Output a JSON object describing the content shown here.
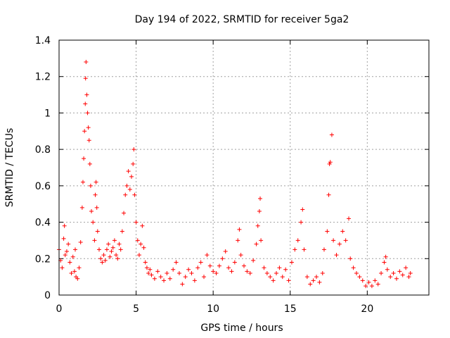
{
  "chart_data": {
    "type": "scatter",
    "title": "Day 194 of 2022, SRMTID for receiver 5ga2",
    "xlabel": "GPS time / hours",
    "ylabel": "SRMTID / TECUs",
    "xlim": [
      0,
      24
    ],
    "ylim": [
      0,
      1.4
    ],
    "xticks": [
      0,
      5,
      10,
      15,
      20
    ],
    "xtick_labels": [
      "0",
      "5",
      "10",
      "15",
      "20"
    ],
    "yticks": [
      0,
      0.2,
      0.4,
      0.6,
      0.8,
      1.0,
      1.2,
      1.4
    ],
    "ytick_labels": [
      "0",
      "0.2",
      "0.4",
      "0.6",
      "0.8",
      "1",
      "1.2",
      "1.4"
    ],
    "grid": true,
    "marker": "+",
    "color": "#ff0000",
    "series": [
      {
        "name": "SRMTID",
        "points": [
          [
            0.0,
            0.25
          ],
          [
            0.1,
            0.19
          ],
          [
            0.2,
            0.15
          ],
          [
            0.3,
            0.31
          ],
          [
            0.35,
            0.38
          ],
          [
            0.4,
            0.22
          ],
          [
            0.5,
            0.24
          ],
          [
            0.6,
            0.28
          ],
          [
            0.7,
            0.18
          ],
          [
            0.8,
            0.12
          ],
          [
            0.9,
            0.21
          ],
          [
            1.0,
            0.13
          ],
          [
            1.05,
            0.25
          ],
          [
            1.1,
            0.1
          ],
          [
            1.2,
            0.09
          ],
          [
            1.3,
            0.15
          ],
          [
            1.4,
            0.29
          ],
          [
            1.5,
            0.48
          ],
          [
            1.55,
            0.62
          ],
          [
            1.6,
            0.75
          ],
          [
            1.65,
            0.9
          ],
          [
            1.7,
            1.05
          ],
          [
            1.72,
            1.19
          ],
          [
            1.75,
            1.28
          ],
          [
            1.8,
            1.1
          ],
          [
            1.85,
            1.0
          ],
          [
            1.9,
            0.92
          ],
          [
            1.95,
            0.85
          ],
          [
            2.0,
            0.72
          ],
          [
            2.05,
            0.6
          ],
          [
            2.1,
            0.46
          ],
          [
            2.2,
            0.4
          ],
          [
            2.3,
            0.3
          ],
          [
            2.35,
            0.55
          ],
          [
            2.4,
            0.62
          ],
          [
            2.45,
            0.48
          ],
          [
            2.5,
            0.35
          ],
          [
            2.6,
            0.25
          ],
          [
            2.7,
            0.2
          ],
          [
            2.8,
            0.18
          ],
          [
            2.9,
            0.22
          ],
          [
            3.0,
            0.19
          ],
          [
            3.1,
            0.25
          ],
          [
            3.2,
            0.28
          ],
          [
            3.3,
            0.21
          ],
          [
            3.4,
            0.24
          ],
          [
            3.5,
            0.26
          ],
          [
            3.6,
            0.3
          ],
          [
            3.7,
            0.22
          ],
          [
            3.8,
            0.2
          ],
          [
            3.9,
            0.28
          ],
          [
            4.0,
            0.25
          ],
          [
            4.1,
            0.35
          ],
          [
            4.2,
            0.45
          ],
          [
            4.3,
            0.55
          ],
          [
            4.4,
            0.6
          ],
          [
            4.5,
            0.68
          ],
          [
            4.6,
            0.58
          ],
          [
            4.7,
            0.65
          ],
          [
            4.8,
            0.72
          ],
          [
            4.85,
            0.8
          ],
          [
            4.9,
            0.55
          ],
          [
            5.0,
            0.4
          ],
          [
            5.1,
            0.3
          ],
          [
            5.2,
            0.22
          ],
          [
            5.3,
            0.28
          ],
          [
            5.4,
            0.38
          ],
          [
            5.5,
            0.26
          ],
          [
            5.6,
            0.18
          ],
          [
            5.7,
            0.15
          ],
          [
            5.8,
            0.12
          ],
          [
            5.9,
            0.14
          ],
          [
            6.0,
            0.11
          ],
          [
            6.2,
            0.09
          ],
          [
            6.4,
            0.13
          ],
          [
            6.6,
            0.1
          ],
          [
            6.8,
            0.08
          ],
          [
            7.0,
            0.12
          ],
          [
            7.2,
            0.09
          ],
          [
            7.4,
            0.14
          ],
          [
            7.6,
            0.18
          ],
          [
            7.8,
            0.12
          ],
          [
            8.0,
            0.06
          ],
          [
            8.2,
            0.1
          ],
          [
            8.4,
            0.14
          ],
          [
            8.6,
            0.12
          ],
          [
            8.8,
            0.08
          ],
          [
            9.0,
            0.15
          ],
          [
            9.2,
            0.18
          ],
          [
            9.4,
            0.1
          ],
          [
            9.6,
            0.22
          ],
          [
            9.8,
            0.16
          ],
          [
            10.0,
            0.13
          ],
          [
            10.2,
            0.12
          ],
          [
            10.4,
            0.16
          ],
          [
            10.6,
            0.2
          ],
          [
            10.8,
            0.24
          ],
          [
            11.0,
            0.15
          ],
          [
            11.2,
            0.13
          ],
          [
            11.4,
            0.18
          ],
          [
            11.6,
            0.3
          ],
          [
            11.7,
            0.36
          ],
          [
            11.8,
            0.22
          ],
          [
            12.0,
            0.16
          ],
          [
            12.2,
            0.13
          ],
          [
            12.4,
            0.12
          ],
          [
            12.6,
            0.19
          ],
          [
            12.8,
            0.28
          ],
          [
            12.9,
            0.38
          ],
          [
            13.0,
            0.46
          ],
          [
            13.05,
            0.53
          ],
          [
            13.1,
            0.3
          ],
          [
            13.3,
            0.15
          ],
          [
            13.5,
            0.12
          ],
          [
            13.7,
            0.1
          ],
          [
            13.9,
            0.08
          ],
          [
            14.1,
            0.12
          ],
          [
            14.3,
            0.15
          ],
          [
            14.5,
            0.1
          ],
          [
            14.7,
            0.14
          ],
          [
            14.9,
            0.08
          ],
          [
            15.1,
            0.18
          ],
          [
            15.3,
            0.25
          ],
          [
            15.5,
            0.3
          ],
          [
            15.7,
            0.4
          ],
          [
            15.8,
            0.47
          ],
          [
            15.9,
            0.25
          ],
          [
            16.1,
            0.1
          ],
          [
            16.3,
            0.06
          ],
          [
            16.5,
            0.08
          ],
          [
            16.7,
            0.1
          ],
          [
            16.9,
            0.07
          ],
          [
            17.1,
            0.12
          ],
          [
            17.2,
            0.25
          ],
          [
            17.4,
            0.35
          ],
          [
            17.5,
            0.55
          ],
          [
            17.55,
            0.72
          ],
          [
            17.6,
            0.73
          ],
          [
            17.7,
            0.88
          ],
          [
            17.8,
            0.3
          ],
          [
            18.0,
            0.22
          ],
          [
            18.2,
            0.28
          ],
          [
            18.4,
            0.35
          ],
          [
            18.6,
            0.3
          ],
          [
            18.8,
            0.42
          ],
          [
            18.9,
            0.2
          ],
          [
            19.1,
            0.15
          ],
          [
            19.3,
            0.12
          ],
          [
            19.5,
            0.1
          ],
          [
            19.7,
            0.08
          ],
          [
            19.9,
            0.05
          ],
          [
            20.1,
            0.07
          ],
          [
            20.3,
            0.05
          ],
          [
            20.5,
            0.08
          ],
          [
            20.7,
            0.06
          ],
          [
            20.9,
            0.12
          ],
          [
            21.1,
            0.18
          ],
          [
            21.2,
            0.21
          ],
          [
            21.3,
            0.14
          ],
          [
            21.5,
            0.1
          ],
          [
            21.7,
            0.12
          ],
          [
            21.9,
            0.09
          ],
          [
            22.1,
            0.13
          ],
          [
            22.3,
            0.11
          ],
          [
            22.5,
            0.15
          ],
          [
            22.7,
            0.1
          ],
          [
            22.8,
            0.12
          ]
        ]
      }
    ]
  }
}
